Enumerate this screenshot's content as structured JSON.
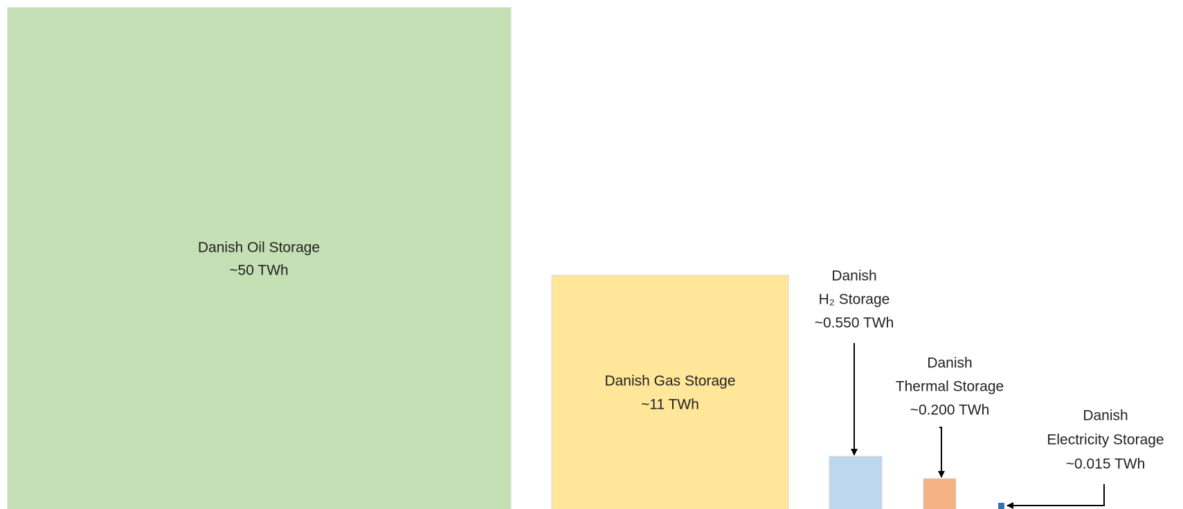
{
  "nodes": [
    {
      "lines": [
        "Danish Oil Storage",
        "~50 TWh"
      ]
    },
    {
      "lines": [
        "Danish Gas Storage",
        "~11 TWh"
      ]
    },
    {
      "lines": [
        "Danish",
        "H₂ Storage",
        "~0.550 TWh"
      ]
    },
    {
      "lines": [
        "Danish",
        "Thermal Storage",
        "~0.200 TWh"
      ]
    },
    {
      "lines": [
        "Danish",
        "Electricity Storage",
        "~0.015 TWh"
      ]
    }
  ]
}
